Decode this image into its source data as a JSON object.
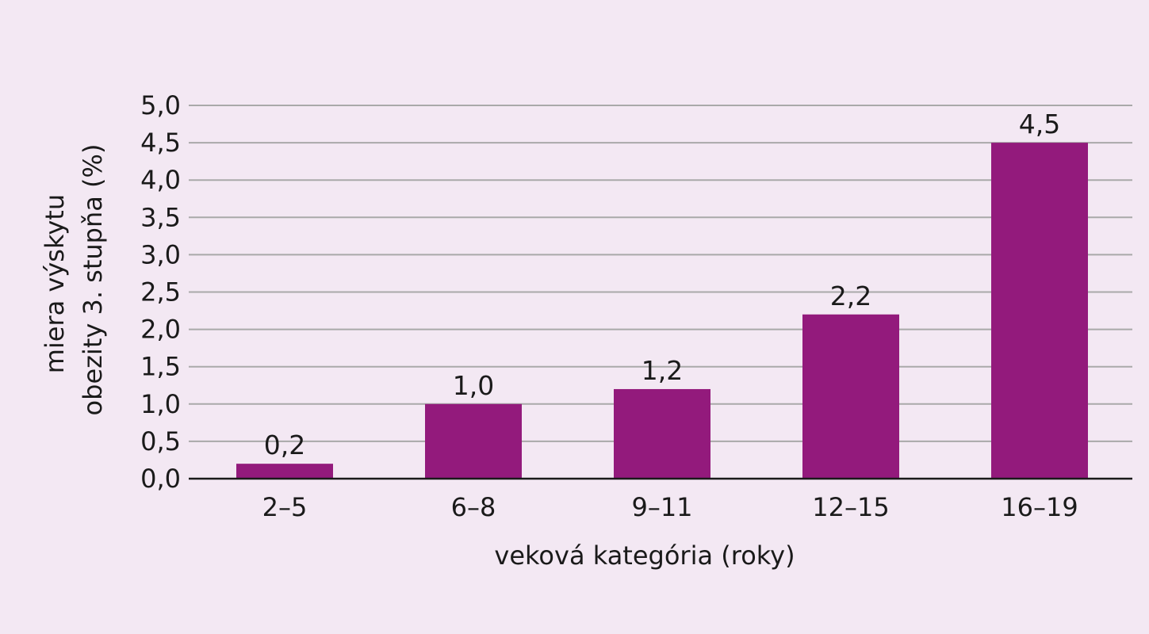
{
  "chart_data": {
    "type": "bar",
    "categories": [
      "2–5",
      "6–8",
      "9–11",
      "12–15",
      "16–19"
    ],
    "values": [
      0.2,
      1.0,
      1.2,
      2.2,
      4.5
    ],
    "value_labels": [
      "0,2",
      "1,0",
      "1,2",
      "2,2",
      "4,5"
    ],
    "xlabel": "veková kategória (roky)",
    "ylabel_lines": [
      "miera výskytu",
      "obezity 3. stupňa (%)"
    ],
    "ylim": [
      0,
      5
    ],
    "yticks": [
      0,
      0.5,
      1,
      1.5,
      2,
      2.5,
      3,
      3.5,
      4,
      4.5,
      5
    ],
    "ytick_labels": [
      "0,0",
      "0,5",
      "1,0",
      "1,5",
      "2,0",
      "2,5",
      "3,0",
      "3,5",
      "4,0",
      "4,5",
      "5,0"
    ],
    "grid": true,
    "legend": "none",
    "colors": {
      "bar": "#931a7c",
      "grid": "#a9a9a9",
      "axis": "#1a1a1a",
      "background": "#f3e8f3"
    }
  }
}
